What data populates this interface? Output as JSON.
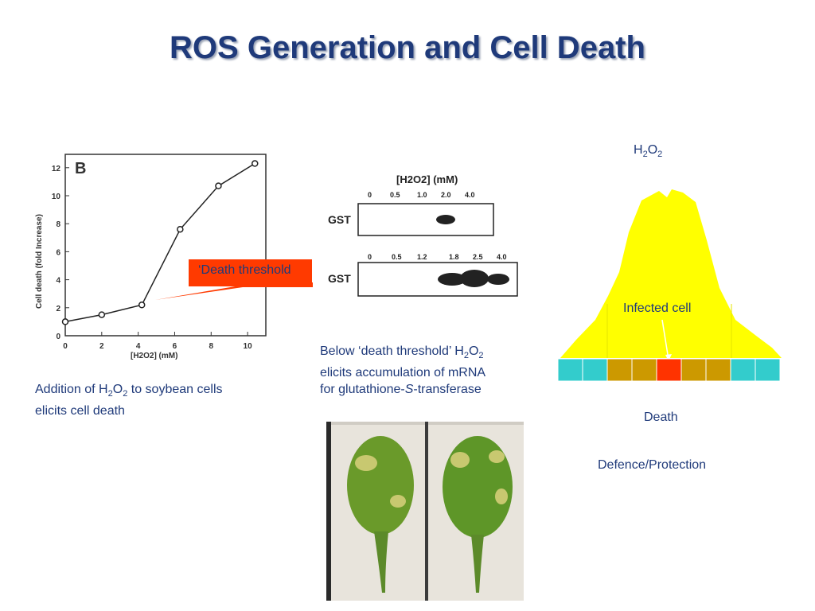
{
  "title": "ROS Generation and Cell Death",
  "chart_data": {
    "type": "line",
    "panel_label": "B",
    "x": [
      0,
      2,
      4.2,
      6.3,
      8.4,
      10.4
    ],
    "y": [
      1.0,
      1.5,
      2.2,
      7.6,
      10.7,
      12.3
    ],
    "xticks": [
      "0",
      "2",
      "4",
      "6",
      "8",
      "10"
    ],
    "yticks": [
      "0",
      "2",
      "4",
      "6",
      "8",
      "10",
      "12"
    ],
    "xlim": [
      0,
      11
    ],
    "ylim": [
      0,
      12.5
    ],
    "xlabel": "[H2O2] (mM)",
    "ylabel": "Cell death (fold Increase)"
  },
  "threshold_label": "‘Death threshold",
  "left_caption": {
    "line1_pre": "Addition of H",
    "sub1": "2",
    "mid": "O",
    "sub2": "2",
    "line1_post": " to soybean cells",
    "line2": "elicits cell death"
  },
  "blot": {
    "header": "[H2O2]  (mM)",
    "row1_label": "GST",
    "row1_conc": [
      "0",
      "0.5",
      "1.0",
      "2.0",
      "4.0"
    ],
    "row2_label": "GST",
    "row2_conc": [
      "0",
      "0.5",
      "1.2",
      "1.8",
      "2.5",
      "4.0"
    ]
  },
  "middle_caption": {
    "line1_pre": "Below ‘death threshold’ H",
    "sub1": "2",
    "mid": "O",
    "sub2": "2",
    "line2": "elicits accumulation of mRNA",
    "line3_pre": "for glutathione-",
    "line3_ital": "S",
    "line3_post": "-transferase"
  },
  "diagram": {
    "h2o2_main": "H",
    "h2o2_sub1": "2",
    "h2o2_mid": "O",
    "h2o2_sub2": "2",
    "infected_cell": "Infected cell",
    "death": "Death",
    "defence": "Defence/Protection",
    "colors": {
      "curve": "#ffff00",
      "cyan_cell": "#33cccc",
      "gold_cell": "#cc9900",
      "red_cell": "#ff3300"
    }
  }
}
